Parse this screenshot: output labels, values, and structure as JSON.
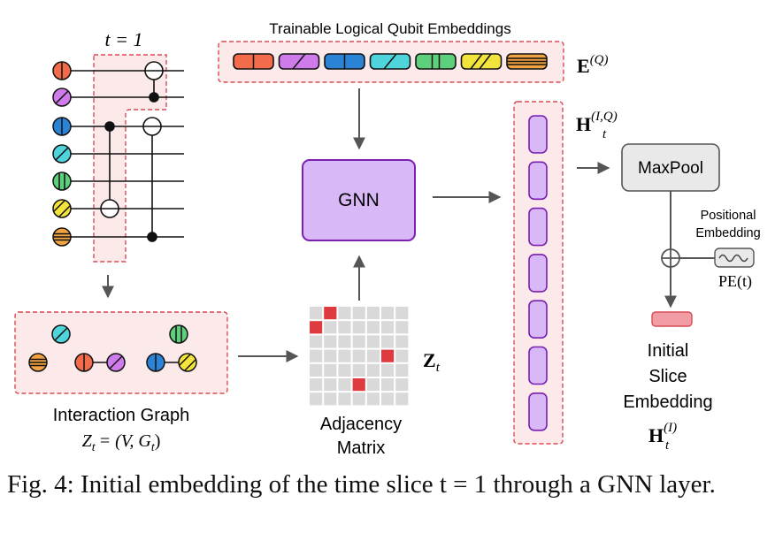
{
  "circuit": {
    "time_label": "t = 1",
    "qubit_colors": [
      "#F26B4B",
      "#D07BEB",
      "#2B83D6",
      "#4FD4DB",
      "#5ECF7A",
      "#F2E33D",
      "#F2A341"
    ]
  },
  "embeddings": {
    "title": "Trainable Logical Qubit Embeddings",
    "symbol": "E",
    "symbol_sup": "(Q)"
  },
  "gnn": {
    "label": "GNN"
  },
  "hidden": {
    "symbol": "H",
    "sub": "t",
    "sup": "(I,Q)"
  },
  "maxpool": {
    "label": "MaxPool"
  },
  "positional": {
    "line1": "Positional",
    "line2": "Embedding",
    "pe_label": "PE(t)"
  },
  "initial": {
    "line1": "Initial",
    "line2": "Slice",
    "line3": "Embedding",
    "symbol": "H",
    "sub": "t",
    "sup": "(I)"
  },
  "interaction_graph": {
    "label": "Interaction Graph",
    "formula_lhs": "Z",
    "formula_sub": "t",
    "formula_rhs": "= (V, G",
    "formula_sub2": "t",
    "formula_end": ")"
  },
  "adjacency": {
    "line1": "Adjacency",
    "line2": "Matrix",
    "symbol": "Z",
    "sub": "t"
  },
  "caption": "Fig. 4: Initial embedding of the time slice t = 1 through a GNN layer.",
  "colors": {
    "pink_fill": "#FCE9EA",
    "pink_border": "#D94B55",
    "purple_fill": "#D9B8F7",
    "purple_border": "#7A1FB0",
    "matrix_red": "#DE3B40",
    "matrix_grey": "#D9D9D9",
    "init_embed": "#F29CA6"
  }
}
